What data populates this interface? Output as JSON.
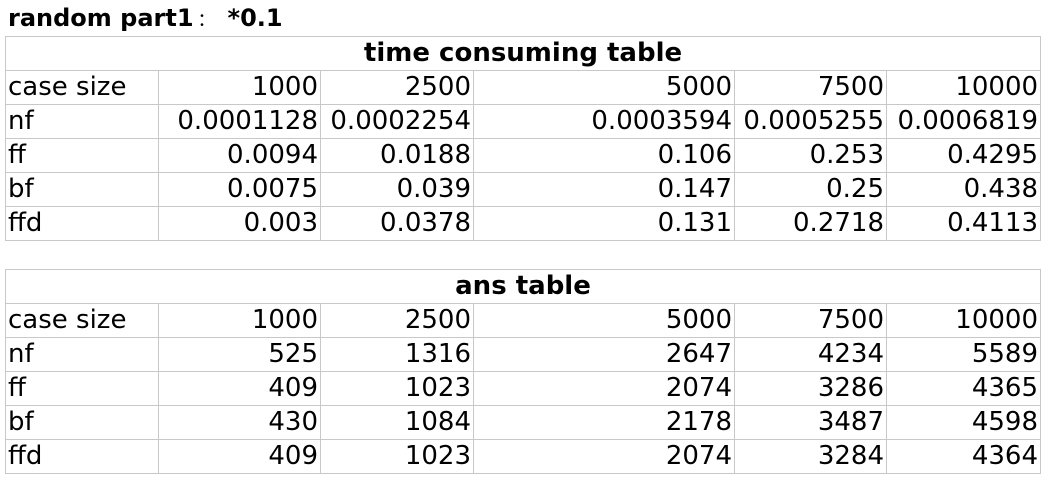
{
  "heading": {
    "main": "random part1",
    "separator": "：",
    "factor": "*0.1"
  },
  "time_table": {
    "title": "time consuming table",
    "header": [
      "case size",
      "1000",
      "2500",
      "5000",
      "7500",
      "10000"
    ],
    "rows": [
      [
        "nf",
        "0.0001128",
        "0.0002254",
        "0.0003594",
        "0.0005255",
        "0.0006819"
      ],
      [
        "ff",
        "0.0094",
        "0.0188",
        "0.106",
        "0.253",
        "0.4295"
      ],
      [
        "bf",
        "0.0075",
        "0.039",
        "0.147",
        "0.25",
        "0.438"
      ],
      [
        "ffd",
        "0.003",
        "0.0378",
        "0.131",
        "0.2718",
        "0.4113"
      ]
    ]
  },
  "ans_table": {
    "title": "ans table",
    "header": [
      "case size",
      "1000",
      "2500",
      "5000",
      "7500",
      "10000"
    ],
    "rows": [
      [
        "nf",
        "525",
        "1316",
        "2647",
        "4234",
        "5589"
      ],
      [
        "ff",
        "409",
        "1023",
        "2074",
        "3286",
        "4365"
      ],
      [
        "bf",
        "430",
        "1084",
        "2178",
        "3487",
        "4598"
      ],
      [
        "ffd",
        "409",
        "1023",
        "2074",
        "3284",
        "4364"
      ]
    ]
  }
}
